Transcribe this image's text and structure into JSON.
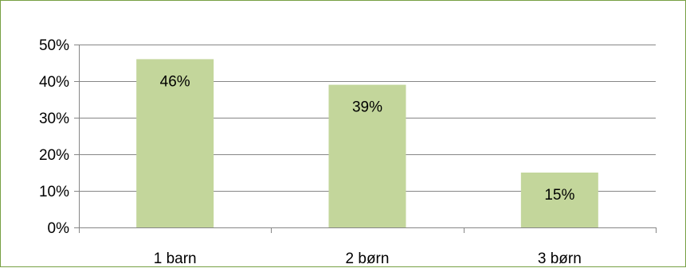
{
  "chart_data": {
    "type": "bar",
    "categories": [
      "1 barn",
      "2 børn",
      "3 børn"
    ],
    "values": [
      46,
      39,
      15
    ],
    "data_labels": [
      "46%",
      "39%",
      "15%"
    ],
    "ylim": [
      0,
      50
    ],
    "yticks": [
      0,
      10,
      20,
      30,
      40,
      50
    ],
    "ytick_labels": [
      "0%",
      "10%",
      "20%",
      "30%",
      "40%",
      "50%"
    ],
    "grid": true,
    "legend": "none",
    "colors": {
      "bar": "#c3d69b",
      "gridline": "#868686",
      "frame": "#77a043"
    }
  }
}
